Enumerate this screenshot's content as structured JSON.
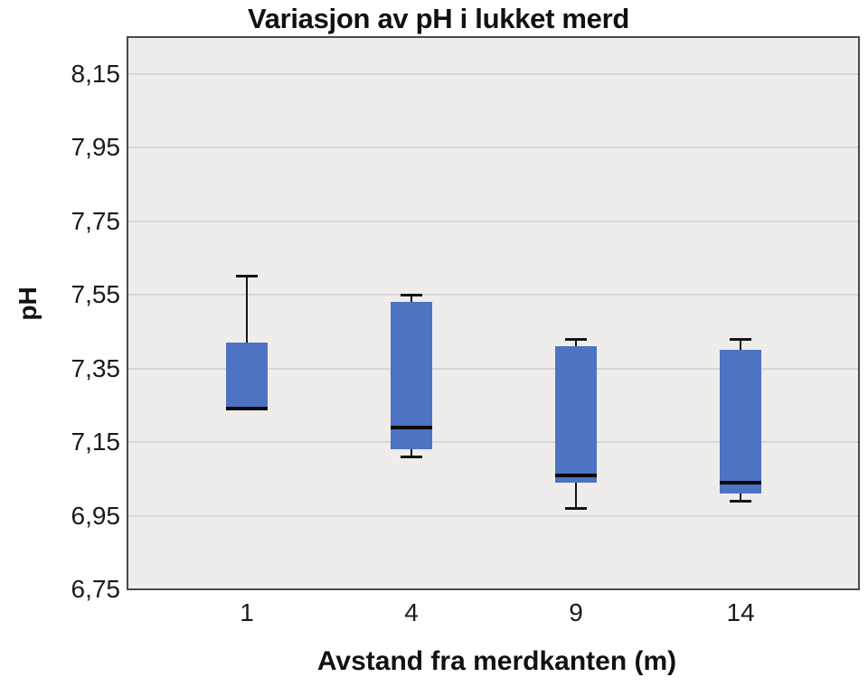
{
  "chart_data": {
    "type": "boxplot",
    "title": "Variasjon av pH i lukket merd",
    "xlabel": "Avstand fra merdkanten (m)",
    "ylabel": "pH",
    "categories": [
      "1",
      "4",
      "9",
      "14"
    ],
    "ylim": [
      6.75,
      8.25
    ],
    "y_tick_values": [
      6.75,
      6.95,
      7.15,
      7.35,
      7.55,
      7.75,
      7.95,
      8.15
    ],
    "y_tick_labels": [
      "6,75",
      "6,95",
      "7,15",
      "7,35",
      "7,55",
      "7,75",
      "7,95",
      "8,15"
    ],
    "grid": "horizontal",
    "legend": "none",
    "boxes": [
      {
        "category": "1",
        "whisker_low": 7.24,
        "q1": 7.24,
        "median": 7.24,
        "q3": 7.42,
        "whisker_high": 7.6
      },
      {
        "category": "4",
        "whisker_low": 7.11,
        "q1": 7.13,
        "median": 7.19,
        "q3": 7.53,
        "whisker_high": 7.55
      },
      {
        "category": "9",
        "whisker_low": 6.97,
        "q1": 7.04,
        "median": 7.06,
        "q3": 7.41,
        "whisker_high": 7.43
      },
      {
        "category": "14",
        "whisker_low": 6.99,
        "q1": 7.01,
        "median": 7.04,
        "q3": 7.4,
        "whisker_high": 7.43
      }
    ],
    "colors": {
      "box_fill": "#4e73c2",
      "median": "#0a0a0a",
      "whisker": "#141414",
      "plot_background": "#eeedec",
      "gridline": "#d7d7d7",
      "frame": "#4a4a4a",
      "text": "#111111",
      "page_background": "#ffffff"
    }
  }
}
